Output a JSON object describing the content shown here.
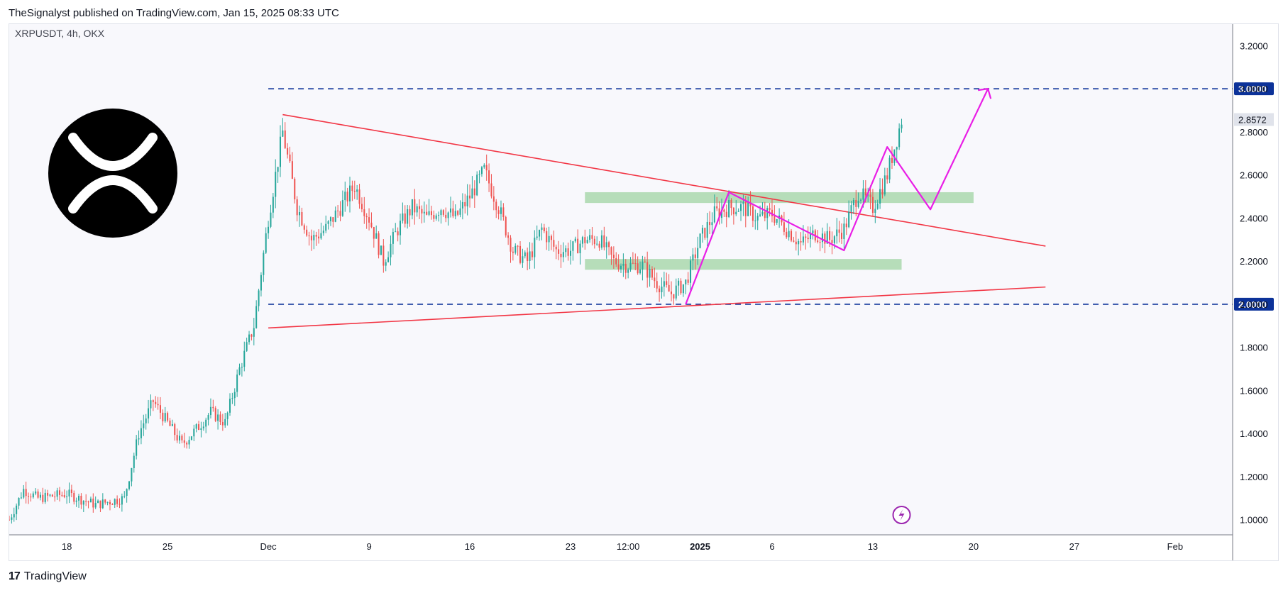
{
  "header": {
    "attribution": "TheSignalyst published on TradingView.com, Jan 15, 2025 08:33 UTC"
  },
  "footer": {
    "brand": "TradingView",
    "brand_icon": "tradingview-logo-icon"
  },
  "symbol_legend": "XRPUSDT, 4h, OKX",
  "logo": {
    "icon": "xrp-logo-icon",
    "background": "#000000",
    "foreground": "#ffffff"
  },
  "colors": {
    "up_candle": "#26a69a",
    "down_candle": "#ef5350",
    "trendline": "#f23645",
    "projection": "#e91ee6",
    "zone": "#a5d6a7",
    "level_line": "#0c3299",
    "level_label_bg": "#0c3299",
    "last_price_bg": "#e0e3eb",
    "plot_bg": "#f8f8fc"
  },
  "chart_data": {
    "type": "candlestick",
    "title": "",
    "xlabel": "",
    "ylabel": "",
    "x_ticks": [
      "18",
      "25",
      "Dec",
      "9",
      "16",
      "23",
      "12:00",
      "2025",
      "6",
      "13",
      "20",
      "27",
      "Feb"
    ],
    "x_range": [
      "2024-11-14",
      "2025-02-07"
    ],
    "ylim": [
      0.93,
      3.3
    ],
    "y_ticks": [
      "1.0000",
      "1.2000",
      "1.4000",
      "1.6000",
      "1.8000",
      "2.0000",
      "2.2000",
      "2.4000",
      "2.6000",
      "2.8000",
      "3.0000",
      "3.2000"
    ],
    "last_price": {
      "label": "2.8572",
      "value": 2.8572
    },
    "price_path": [
      [
        "2024-11-14",
        1.0
      ],
      [
        "2024-11-15",
        1.14
      ],
      [
        "2024-11-16",
        1.1
      ],
      [
        "2024-11-18",
        1.12
      ],
      [
        "2024-11-20",
        1.07
      ],
      [
        "2024-11-22",
        1.1
      ],
      [
        "2024-11-23",
        1.4
      ],
      [
        "2024-11-24",
        1.55
      ],
      [
        "2024-11-25",
        1.45
      ],
      [
        "2024-11-26",
        1.35
      ],
      [
        "2024-11-27",
        1.42
      ],
      [
        "2024-11-28",
        1.5
      ],
      [
        "2024-11-29",
        1.45
      ],
      [
        "2024-11-30",
        1.7
      ],
      [
        "2024-12-01",
        1.9
      ],
      [
        "2024-12-02",
        2.4
      ],
      [
        "2024-12-03",
        2.8
      ],
      [
        "2024-12-04",
        2.45
      ],
      [
        "2024-12-05",
        2.3
      ],
      [
        "2024-12-06",
        2.35
      ],
      [
        "2024-12-07",
        2.45
      ],
      [
        "2024-12-08",
        2.55
      ],
      [
        "2024-12-09",
        2.4
      ],
      [
        "2024-12-10",
        2.2
      ],
      [
        "2024-12-11",
        2.35
      ],
      [
        "2024-12-12",
        2.45
      ],
      [
        "2024-12-13",
        2.4
      ],
      [
        "2024-12-14",
        2.45
      ],
      [
        "2024-12-15",
        2.4
      ],
      [
        "2024-12-16",
        2.5
      ],
      [
        "2024-12-17",
        2.62
      ],
      [
        "2024-12-18",
        2.45
      ],
      [
        "2024-12-19",
        2.25
      ],
      [
        "2024-12-20",
        2.2
      ],
      [
        "2024-12-21",
        2.35
      ],
      [
        "2024-12-22",
        2.25
      ],
      [
        "2024-12-23",
        2.25
      ],
      [
        "2024-12-24",
        2.3
      ],
      [
        "2024-12-25",
        2.3
      ],
      [
        "2024-12-26",
        2.2
      ],
      [
        "2024-12-27",
        2.18
      ],
      [
        "2024-12-28",
        2.18
      ],
      [
        "2024-12-29",
        2.1
      ],
      [
        "2024-12-30",
        2.05
      ],
      [
        "2024-12-31",
        2.1
      ],
      [
        "2025-01-01",
        2.3
      ],
      [
        "2025-01-02",
        2.42
      ],
      [
        "2025-01-03",
        2.45
      ],
      [
        "2025-01-04",
        2.45
      ],
      [
        "2025-01-05",
        2.4
      ],
      [
        "2025-01-06",
        2.42
      ],
      [
        "2025-01-07",
        2.35
      ],
      [
        "2025-01-08",
        2.28
      ],
      [
        "2025-01-09",
        2.33
      ],
      [
        "2025-01-10",
        2.3
      ],
      [
        "2025-01-11",
        2.35
      ],
      [
        "2025-01-12",
        2.52
      ],
      [
        "2025-01-13",
        2.45
      ],
      [
        "2025-01-14",
        2.6
      ],
      [
        "2025-01-15",
        2.857
      ]
    ],
    "levels": [
      {
        "label": "3.0000",
        "value": 3.0
      },
      {
        "label": "2.0000",
        "value": 2.0
      }
    ],
    "trendlines": [
      {
        "name": "upper-trendline",
        "from": [
          "2024-12-03",
          2.88
        ],
        "to": [
          "2025-01-25",
          2.27
        ]
      },
      {
        "name": "lower-trendline",
        "from": [
          "2024-12-02",
          1.89
        ],
        "to": [
          "2025-01-25",
          2.08
        ]
      }
    ],
    "zones": [
      {
        "name": "upper-support-zone",
        "from": "2024-12-24",
        "to": "2025-01-20",
        "top": 2.52,
        "bottom": 2.47
      },
      {
        "name": "lower-support-zone",
        "from": "2024-12-24",
        "to": "2025-01-15",
        "top": 2.21,
        "bottom": 2.16
      }
    ],
    "projection_path": [
      [
        "2024-12-31",
        2.0
      ],
      [
        "2025-01-03",
        2.52
      ],
      [
        "2025-01-11",
        2.25
      ],
      [
        "2025-01-14",
        2.73
      ],
      [
        "2025-01-17",
        2.44
      ],
      [
        "2025-01-21",
        3.0
      ]
    ]
  }
}
